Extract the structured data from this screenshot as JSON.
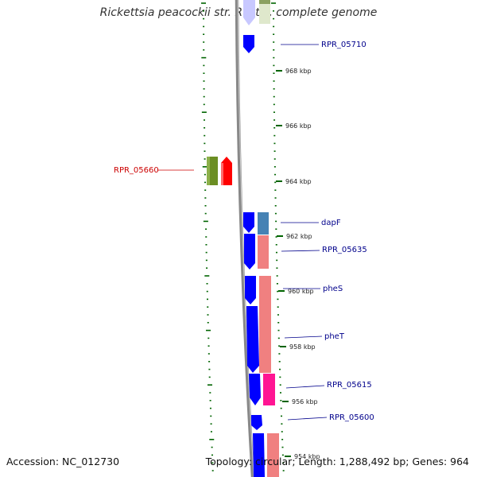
{
  "title": "Rickettsia peacockii str. Rustic, complete genome",
  "footer": {
    "accession": "Accession: NC_012730",
    "summary": "Topology: circular; Length: 1,288,492 bp; Genes: 964"
  },
  "scale_ticks": [
    {
      "label": "968 kbp",
      "kbp": 968
    },
    {
      "label": "966 kbp",
      "kbp": 966
    },
    {
      "label": "964 kbp",
      "kbp": 964
    },
    {
      "label": "962 kbp",
      "kbp": 962
    },
    {
      "label": "960 kbp",
      "kbp": 960
    },
    {
      "label": "958 kbp",
      "kbp": 958
    },
    {
      "label": "956 kbp",
      "kbp": 956
    },
    {
      "label": "954 kbp",
      "kbp": 954
    }
  ],
  "gene_labels": [
    {
      "text": "RPR_05710",
      "color": "#00008B"
    },
    {
      "text": "RPR_05660",
      "color": "#CC0000"
    },
    {
      "text": "dapF",
      "color": "#00008B"
    },
    {
      "text": "RPR_05635",
      "color": "#00008B"
    },
    {
      "text": "pheS",
      "color": "#00008B"
    },
    {
      "text": "pheT",
      "color": "#00008B"
    },
    {
      "text": "RPR_05615",
      "color": "#00008B"
    },
    {
      "text": "RPR_05600",
      "color": "#00008B"
    }
  ],
  "colors": {
    "forward_cds": "#0000FF",
    "reverse_cds": "#FF0000",
    "cog_salmon": "#F08080",
    "cog_steel": "#4682B4",
    "cog_olive": "#6B8E23",
    "cog_magenta": "#FF1493",
    "backbone": "#888888",
    "tick_green": "#006400"
  }
}
